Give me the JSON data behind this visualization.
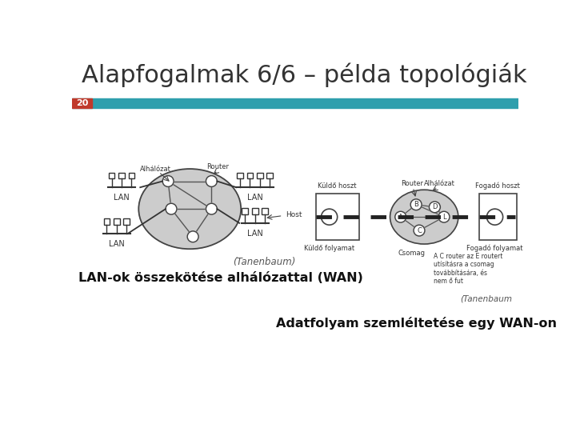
{
  "title": "Alapfogalmak 6/6 – példa topológiák",
  "slide_number": "20",
  "slide_number_bg": "#c0392b",
  "header_bar_color": "#2e9fad",
  "background_color": "#ffffff",
  "title_fontsize": 22,
  "title_color": "#333333",
  "left_caption": "LAN-ok összekötése alhálózattal (WAN)",
  "left_subcaption": "(Tanenbaum)",
  "right_caption": "Adatfolyam szemléltetése egy WAN-on",
  "right_subcaption": "(Tanenbaum",
  "annotation_text": "A C router az E routert\nutísításra a csomag\ntovábbítására, és\nnem ő fut"
}
